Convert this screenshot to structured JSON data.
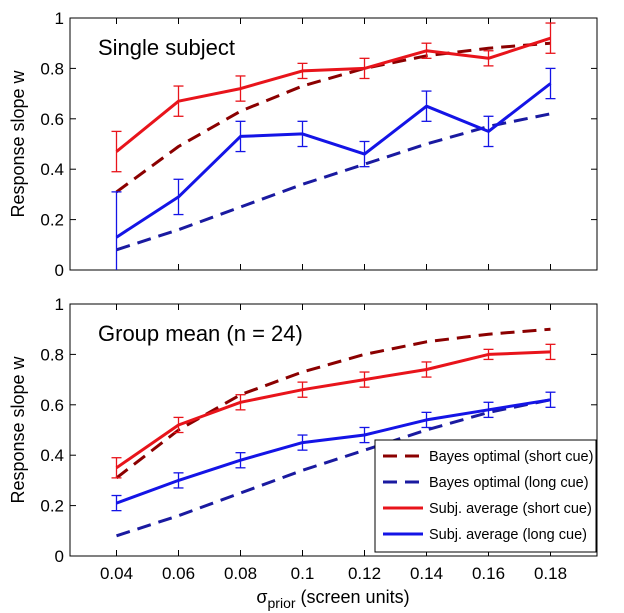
{
  "chart_data": [
    {
      "type": "line",
      "title": "Single subject",
      "ylabel": "Response slope w",
      "xlabel": "",
      "x": [
        0.04,
        0.06,
        0.08,
        0.1,
        0.12,
        0.14,
        0.16,
        0.18
      ],
      "x_tick_labels": [
        "0.04",
        "0.06",
        "0.08",
        "0.1",
        "0.12",
        "0.14",
        "0.16",
        "0.18"
      ],
      "xlim": [
        0.025,
        0.195
      ],
      "ylim": [
        0,
        1
      ],
      "y_ticks": [
        0,
        0.2,
        0.4,
        0.6,
        0.8,
        1
      ],
      "y_tick_labels": [
        "0",
        "0.2",
        "0.4",
        "0.6",
        "0.8",
        "1"
      ],
      "legend": false,
      "series": [
        {
          "key": "bayes_short",
          "style": "dashed",
          "color": "#8b0000",
          "values": [
            0.31,
            0.49,
            0.63,
            0.73,
            0.8,
            0.85,
            0.88,
            0.9
          ]
        },
        {
          "key": "bayes_long",
          "style": "dashed",
          "color": "#1a1aa0",
          "values": [
            0.08,
            0.16,
            0.25,
            0.34,
            0.42,
            0.5,
            0.57,
            0.62
          ]
        },
        {
          "key": "subj_short",
          "style": "solid",
          "color": "#e8141b",
          "values": [
            0.47,
            0.67,
            0.72,
            0.79,
            0.8,
            0.87,
            0.84,
            0.92
          ],
          "errors": [
            0.08,
            0.06,
            0.05,
            0.03,
            0.04,
            0.03,
            0.03,
            0.06
          ]
        },
        {
          "key": "subj_long",
          "style": "solid",
          "color": "#1414e6",
          "values": [
            0.13,
            0.29,
            0.53,
            0.54,
            0.46,
            0.65,
            0.55,
            0.74
          ],
          "errors": [
            0.18,
            0.07,
            0.06,
            0.05,
            0.05,
            0.06,
            0.06,
            0.06
          ]
        }
      ]
    },
    {
      "type": "line",
      "title": "Group mean (n = 24)",
      "ylabel": "Response slope w",
      "xlabel_main": "σ",
      "xlabel_sub": "prior",
      "xlabel_rest": " (screen units)",
      "x": [
        0.04,
        0.06,
        0.08,
        0.1,
        0.12,
        0.14,
        0.16,
        0.18
      ],
      "x_tick_labels": [
        "0.04",
        "0.06",
        "0.08",
        "0.1",
        "0.12",
        "0.14",
        "0.16",
        "0.18"
      ],
      "xlim": [
        0.025,
        0.195
      ],
      "ylim": [
        0,
        1
      ],
      "y_ticks": [
        0,
        0.2,
        0.4,
        0.6,
        0.8,
        1
      ],
      "y_tick_labels": [
        "0",
        "0.2",
        "0.4",
        "0.6",
        "0.8",
        "1"
      ],
      "legend": "bottom-right",
      "series": [
        {
          "key": "bayes_short",
          "name": "Bayes optimal (short cue)",
          "style": "dashed",
          "color": "#8b0000",
          "values": [
            0.31,
            0.5,
            0.64,
            0.73,
            0.8,
            0.85,
            0.88,
            0.9
          ]
        },
        {
          "key": "bayes_long",
          "name": "Bayes optimal (long cue)",
          "style": "dashed",
          "color": "#1a1aa0",
          "values": [
            0.08,
            0.16,
            0.25,
            0.34,
            0.42,
            0.5,
            0.57,
            0.62
          ]
        },
        {
          "key": "subj_short",
          "name": "Subj. average (short cue)",
          "style": "solid",
          "color": "#e8141b",
          "values": [
            0.35,
            0.52,
            0.61,
            0.66,
            0.7,
            0.74,
            0.8,
            0.81
          ],
          "errors": [
            0.04,
            0.03,
            0.03,
            0.03,
            0.03,
            0.03,
            0.02,
            0.03
          ]
        },
        {
          "key": "subj_long",
          "name": "Subj. average (long cue)",
          "style": "solid",
          "color": "#1414e6",
          "values": [
            0.21,
            0.3,
            0.38,
            0.45,
            0.48,
            0.54,
            0.58,
            0.62
          ],
          "errors": [
            0.03,
            0.03,
            0.03,
            0.03,
            0.03,
            0.03,
            0.03,
            0.03
          ]
        }
      ]
    }
  ]
}
